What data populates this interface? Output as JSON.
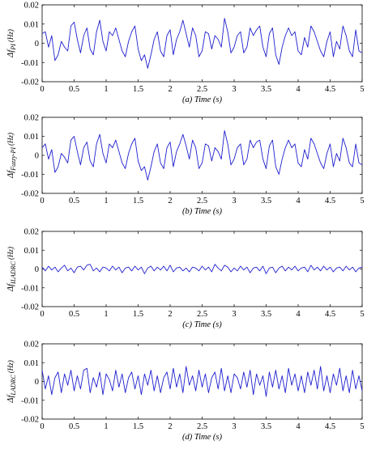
{
  "chart_data": [
    {
      "type": "line",
      "caption": "(a)  Time (s)",
      "ylabel": {
        "main": "Δf",
        "sub": "PI",
        "unit": "(Hz)"
      },
      "xlim": [
        0,
        5
      ],
      "ylim": [
        -0.02,
        0.02
      ],
      "xticks": [
        "0",
        "0.5",
        "1",
        "1.5",
        "2",
        "2.5",
        "3",
        "3.5",
        "4",
        "4.5",
        "5"
      ],
      "yticks": [
        "-0.02",
        "-0.01",
        "0",
        "0.01",
        "0.02"
      ],
      "line_color": "#1f1fcf",
      "series": [
        {
          "x": [
            0,
            0.05,
            0.1,
            0.15,
            0.2,
            0.25,
            0.3,
            0.35,
            0.4,
            0.45,
            0.5,
            0.55,
            0.6,
            0.65,
            0.7,
            0.75,
            0.8,
            0.85,
            0.9,
            0.95,
            1.0,
            1.05,
            1.1,
            1.15,
            1.2,
            1.25,
            1.3,
            1.35,
            1.4,
            1.45,
            1.5,
            1.55,
            1.6,
            1.65,
            1.7,
            1.75,
            1.8,
            1.85,
            1.9,
            1.95,
            2.0,
            2.05,
            2.1,
            2.15,
            2.2,
            2.25,
            2.3,
            2.35,
            2.4,
            2.45,
            2.5,
            2.55,
            2.6,
            2.65,
            2.7,
            2.75,
            2.8,
            2.85,
            2.9,
            2.95,
            3.0,
            3.05,
            3.1,
            3.15,
            3.2,
            3.25,
            3.3,
            3.35,
            3.4,
            3.45,
            3.5,
            3.55,
            3.6,
            3.65,
            3.7,
            3.75,
            3.8,
            3.85,
            3.9,
            3.95,
            4.0,
            4.05,
            4.1,
            4.15,
            4.2,
            4.25,
            4.3,
            4.35,
            4.4,
            4.45,
            4.5,
            4.55,
            4.6,
            4.65,
            4.7,
            4.75,
            4.8,
            4.85,
            4.9,
            4.95,
            5.0
          ],
          "y": [
            0.005,
            0.006,
            -0.002,
            0.004,
            -0.009,
            -0.006,
            0.001,
            -0.002,
            -0.004,
            0.009,
            0.011,
            0.002,
            -0.005,
            0.004,
            0.008,
            -0.003,
            -0.006,
            0.006,
            0.012,
            0.001,
            -0.004,
            0.006,
            0.004,
            0.008,
            0.002,
            -0.004,
            -0.007,
            0.001,
            0.006,
            0.009,
            -0.003,
            -0.009,
            -0.006,
            -0.013,
            -0.006,
            0.002,
            0.006,
            -0.004,
            -0.007,
            0.004,
            0.007,
            -0.006,
            0.002,
            0.006,
            0.012,
            0.005,
            -0.002,
            0.008,
            0.004,
            -0.007,
            -0.004,
            0.006,
            0.005,
            -0.003,
            0.004,
            0.002,
            -0.002,
            0.013,
            0.006,
            -0.005,
            -0.002,
            0.004,
            0.006,
            -0.005,
            -0.002,
            0.008,
            0.004,
            0.007,
            0.009,
            -0.002,
            -0.007,
            0.005,
            0.008,
            -0.006,
            -0.011,
            -0.002,
            0.004,
            0.008,
            0.004,
            0.006,
            -0.004,
            -0.006,
            0.003,
            -0.002,
            0.009,
            0.006,
            0.001,
            -0.004,
            -0.007,
            0.001,
            0.006,
            -0.007,
            0.001,
            -0.003,
            0.009,
            0.004,
            -0.004,
            -0.007,
            0.007,
            -0.004,
            -0.005
          ]
        }
      ]
    },
    {
      "type": "line",
      "caption": "(b)  Time (s)",
      "ylabel": {
        "main": "Δf",
        "sub": "Fuzzy-PI",
        "unit": "(Hz)"
      },
      "xlim": [
        0,
        5
      ],
      "ylim": [
        -0.02,
        0.02
      ],
      "xticks": [
        "0",
        "0.5",
        "1",
        "1.5",
        "2",
        "2.5",
        "3",
        "3.5",
        "4",
        "4.5",
        "5"
      ],
      "yticks": [
        "-0.02",
        "-0.01",
        "0",
        "0.01",
        "0.02"
      ],
      "line_color": "#1f1fcf",
      "series": [
        {
          "x": [
            0,
            0.05,
            0.1,
            0.15,
            0.2,
            0.25,
            0.3,
            0.35,
            0.4,
            0.45,
            0.5,
            0.55,
            0.6,
            0.65,
            0.7,
            0.75,
            0.8,
            0.85,
            0.9,
            0.95,
            1.0,
            1.05,
            1.1,
            1.15,
            1.2,
            1.25,
            1.3,
            1.35,
            1.4,
            1.45,
            1.5,
            1.55,
            1.6,
            1.65,
            1.7,
            1.75,
            1.8,
            1.85,
            1.9,
            1.95,
            2.0,
            2.05,
            2.1,
            2.15,
            2.2,
            2.25,
            2.3,
            2.35,
            2.4,
            2.45,
            2.5,
            2.55,
            2.6,
            2.65,
            2.7,
            2.75,
            2.8,
            2.85,
            2.9,
            2.95,
            3.0,
            3.05,
            3.1,
            3.15,
            3.2,
            3.25,
            3.3,
            3.35,
            3.4,
            3.45,
            3.5,
            3.55,
            3.6,
            3.65,
            3.7,
            3.75,
            3.8,
            3.85,
            3.9,
            3.95,
            4.0,
            4.05,
            4.1,
            4.15,
            4.2,
            4.25,
            4.3,
            4.35,
            4.4,
            4.45,
            4.5,
            4.55,
            4.6,
            4.65,
            4.7,
            4.75,
            4.8,
            4.85,
            4.9,
            4.95,
            5.0
          ],
          "y": [
            0.004,
            0.006,
            -0.002,
            0.003,
            -0.009,
            -0.006,
            0.001,
            -0.001,
            -0.004,
            0.008,
            0.01,
            0.002,
            -0.005,
            0.004,
            0.007,
            -0.003,
            -0.006,
            0.006,
            0.011,
            0.001,
            -0.004,
            0.006,
            0.004,
            0.008,
            0.002,
            -0.004,
            -0.007,
            0.001,
            0.006,
            0.009,
            -0.003,
            -0.008,
            -0.006,
            -0.013,
            -0.006,
            0.002,
            0.006,
            -0.004,
            -0.007,
            0.004,
            0.007,
            -0.006,
            0.002,
            0.006,
            0.011,
            0.005,
            -0.002,
            0.008,
            0.004,
            -0.007,
            -0.004,
            0.006,
            0.005,
            -0.003,
            0.004,
            0.002,
            -0.002,
            0.013,
            0.006,
            -0.005,
            -0.002,
            0.004,
            0.006,
            -0.005,
            -0.002,
            0.008,
            0.004,
            0.007,
            0.008,
            -0.002,
            -0.007,
            0.005,
            0.008,
            -0.006,
            -0.01,
            -0.002,
            0.004,
            0.008,
            0.004,
            0.006,
            -0.004,
            -0.006,
            0.003,
            -0.002,
            0.009,
            0.006,
            0.001,
            -0.004,
            -0.007,
            0.001,
            0.006,
            -0.006,
            0.001,
            -0.003,
            0.009,
            0.004,
            -0.004,
            -0.006,
            0.006,
            -0.004,
            -0.005
          ]
        }
      ]
    },
    {
      "type": "line",
      "caption": "(c)  Time (s)",
      "ylabel": {
        "main": "Δf",
        "sub": "ILADRC",
        "unit": "(Hz)"
      },
      "xlim": [
        0,
        5
      ],
      "ylim": [
        -0.02,
        0.02
      ],
      "xticks": [
        "0",
        "0.5",
        "1",
        "1.5",
        "2",
        "2.5",
        "3",
        "3.5",
        "4",
        "4.5",
        "5"
      ],
      "yticks": [
        "-0.02",
        "-0.01",
        "0",
        "0.01",
        "0.02"
      ],
      "line_color": "#1f1fcf",
      "series": [
        {
          "x": [
            0,
            0.05,
            0.1,
            0.15,
            0.2,
            0.25,
            0.3,
            0.35,
            0.4,
            0.45,
            0.5,
            0.55,
            0.6,
            0.65,
            0.7,
            0.75,
            0.8,
            0.85,
            0.9,
            0.95,
            1.0,
            1.05,
            1.1,
            1.15,
            1.2,
            1.25,
            1.3,
            1.35,
            1.4,
            1.45,
            1.5,
            1.55,
            1.6,
            1.65,
            1.7,
            1.75,
            1.8,
            1.85,
            1.9,
            1.95,
            2.0,
            2.05,
            2.1,
            2.15,
            2.2,
            2.25,
            2.3,
            2.35,
            2.4,
            2.45,
            2.5,
            2.55,
            2.6,
            2.65,
            2.7,
            2.75,
            2.8,
            2.85,
            2.9,
            2.95,
            3.0,
            3.05,
            3.1,
            3.15,
            3.2,
            3.25,
            3.3,
            3.35,
            3.4,
            3.45,
            3.5,
            3.55,
            3.6,
            3.65,
            3.7,
            3.75,
            3.8,
            3.85,
            3.9,
            3.95,
            4.0,
            4.05,
            4.1,
            4.15,
            4.2,
            4.25,
            4.3,
            4.35,
            4.4,
            4.45,
            4.5,
            4.55,
            4.6,
            4.65,
            4.7,
            4.75,
            4.8,
            4.85,
            4.9,
            4.95,
            5.0
          ],
          "y": [
            0.001,
            -0.001,
            0.0015,
            -0.0005,
            0.001,
            -0.0015,
            0.0005,
            0.002,
            -0.001,
            0.0005,
            -0.002,
            0.001,
            0.0015,
            -0.0005,
            0.002,
            0.0025,
            -0.001,
            0.0005,
            -0.0015,
            0.001,
            0.0005,
            -0.001,
            0.0015,
            -0.0005,
            0.001,
            -0.002,
            0.0005,
            0.001,
            -0.001,
            0.0015,
            -0.0005,
            0.001,
            -0.0025,
            0.0005,
            0.0015,
            -0.001,
            0.001,
            -0.0005,
            0.0015,
            -0.001,
            0.002,
            -0.0015,
            0.0005,
            0.001,
            -0.001,
            0.0005,
            -0.0015,
            0.001,
            0.0005,
            -0.001,
            0.0015,
            -0.0005,
            0.001,
            -0.0015,
            0.0025,
            0.0005,
            -0.001,
            0.002,
            0.001,
            -0.0015,
            0.0005,
            -0.001,
            0.0015,
            -0.0005,
            0.001,
            -0.002,
            0.0005,
            0.001,
            -0.001,
            0.0015,
            -0.0025,
            0.0005,
            0.001,
            -0.002,
            0.0005,
            0.0015,
            -0.001,
            0.001,
            -0.0005,
            0.0015,
            -0.001,
            0.0005,
            0.001,
            -0.0015,
            0.002,
            -0.0005,
            0.001,
            -0.001,
            0.0015,
            -0.0005,
            0.001,
            -0.0015,
            0.0005,
            0.001,
            -0.001,
            0.0015,
            -0.0005,
            0.001,
            -0.0015,
            0.0005,
            0.001
          ]
        }
      ]
    },
    {
      "type": "line",
      "caption": "(d)  Time (s)",
      "ylabel": {
        "main": "Δf",
        "sub": "LADRC",
        "unit": "(Hz)"
      },
      "xlim": [
        0,
        5
      ],
      "ylim": [
        -0.02,
        0.02
      ],
      "xticks": [
        "0",
        "0.5",
        "1",
        "1.5",
        "2",
        "2.5",
        "3",
        "3.5",
        "4",
        "4.5",
        "5"
      ],
      "yticks": [
        "-0.02",
        "-0.01",
        "0",
        "0.01",
        "0.02"
      ],
      "line_color": "#1f1fcf",
      "series": [
        {
          "x": [
            0,
            0.05,
            0.1,
            0.15,
            0.2,
            0.25,
            0.3,
            0.35,
            0.4,
            0.45,
            0.5,
            0.55,
            0.6,
            0.65,
            0.7,
            0.75,
            0.8,
            0.85,
            0.9,
            0.95,
            1.0,
            1.05,
            1.1,
            1.15,
            1.2,
            1.25,
            1.3,
            1.35,
            1.4,
            1.45,
            1.5,
            1.55,
            1.6,
            1.65,
            1.7,
            1.75,
            1.8,
            1.85,
            1.9,
            1.95,
            2.0,
            2.05,
            2.1,
            2.15,
            2.2,
            2.25,
            2.3,
            2.35,
            2.4,
            2.45,
            2.5,
            2.55,
            2.6,
            2.65,
            2.7,
            2.75,
            2.8,
            2.85,
            2.9,
            2.95,
            3.0,
            3.05,
            3.1,
            3.15,
            3.2,
            3.25,
            3.3,
            3.35,
            3.4,
            3.45,
            3.5,
            3.55,
            3.6,
            3.65,
            3.7,
            3.75,
            3.8,
            3.85,
            3.9,
            3.95,
            4.0,
            4.05,
            4.1,
            4.15,
            4.2,
            4.25,
            4.3,
            4.35,
            4.4,
            4.45,
            4.5,
            4.55,
            4.6,
            4.65,
            4.7,
            4.75,
            4.8,
            4.85,
            4.9,
            4.95,
            5.0
          ],
          "y": [
            0.006,
            -0.004,
            0.003,
            -0.007,
            0.002,
            0.005,
            -0.006,
            0.004,
            -0.002,
            0.006,
            -0.005,
            0.003,
            -0.004,
            0.006,
            0.007,
            -0.006,
            0.002,
            -0.003,
            0.005,
            -0.007,
            0.004,
            0.001,
            -0.005,
            0.006,
            -0.003,
            0.004,
            -0.006,
            0.002,
            0.005,
            -0.004,
            0.003,
            -0.007,
            0.004,
            -0.002,
            0.006,
            -0.005,
            0.003,
            -0.006,
            0.002,
            0.005,
            -0.004,
            0.007,
            -0.003,
            0.004,
            -0.006,
            0.008,
            -0.002,
            0.003,
            -0.005,
            0.006,
            -0.003,
            0.004,
            -0.006,
            0.002,
            0.005,
            -0.004,
            0.007,
            -0.005,
            0.003,
            -0.006,
            0.004,
            0.002,
            -0.004,
            0.005,
            -0.003,
            0.006,
            -0.007,
            0.004,
            -0.002,
            0.003,
            -0.008,
            0.005,
            -0.003,
            0.006,
            -0.004,
            0.003,
            -0.006,
            0.007,
            -0.002,
            0.004,
            -0.005,
            0.003,
            -0.006,
            0.005,
            -0.002,
            0.006,
            -0.004,
            0.008,
            -0.005,
            0.003,
            -0.006,
            0.004,
            -0.002,
            0.007,
            -0.005,
            0.003,
            -0.006,
            0.006,
            -0.004,
            0.003,
            -0.005
          ]
        }
      ]
    }
  ]
}
